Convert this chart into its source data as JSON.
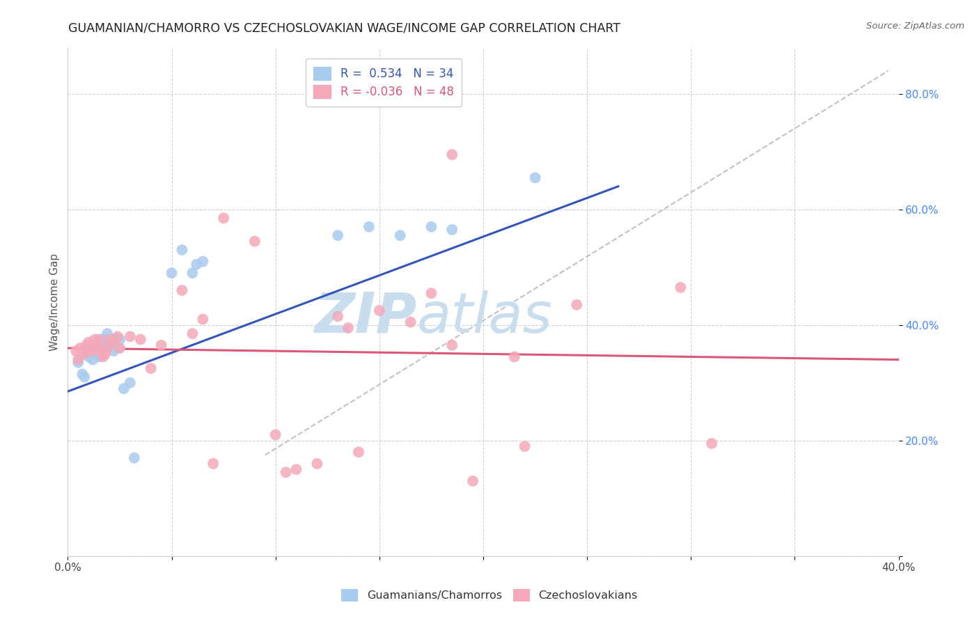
{
  "title": "GUAMANIAN/CHAMORRO VS CZECHOSLOVAKIAN WAGE/INCOME GAP CORRELATION CHART",
  "source": "Source: ZipAtlas.com",
  "ylabel": "Wage/Income Gap",
  "xlim": [
    0.0,
    0.4
  ],
  "ylim": [
    0.0,
    0.88
  ],
  "xticks": [
    0.0,
    0.05,
    0.1,
    0.15,
    0.2,
    0.25,
    0.3,
    0.35,
    0.4
  ],
  "xticklabels": [
    "0.0%",
    "",
    "",
    "",
    "",
    "",
    "",
    "",
    "40.0%"
  ],
  "yticks": [
    0.0,
    0.2,
    0.4,
    0.6,
    0.8
  ],
  "yticklabels": [
    "",
    "20.0%",
    "40.0%",
    "60.0%",
    "80.0%"
  ],
  "color_blue": "#A8CCEE",
  "color_pink": "#F4A8B8",
  "line_blue": "#3355BB",
  "line_pink": "#DD5577",
  "line_diag": "#BBBBBB",
  "background": "#FFFFFF",
  "grid_color": "#CCCCCC",
  "blue_x": [
    0.005,
    0.007,
    0.008,
    0.01,
    0.01,
    0.012,
    0.013,
    0.014,
    0.015,
    0.016,
    0.017,
    0.018,
    0.018,
    0.019,
    0.02,
    0.021,
    0.022,
    0.023,
    0.024,
    0.025,
    0.027,
    0.03,
    0.032,
    0.05,
    0.055,
    0.06,
    0.062,
    0.065,
    0.13,
    0.145,
    0.16,
    0.175,
    0.185,
    0.225
  ],
  "blue_y": [
    0.335,
    0.315,
    0.31,
    0.345,
    0.36,
    0.34,
    0.35,
    0.36,
    0.345,
    0.375,
    0.365,
    0.36,
    0.375,
    0.385,
    0.365,
    0.375,
    0.355,
    0.375,
    0.36,
    0.375,
    0.29,
    0.3,
    0.17,
    0.49,
    0.53,
    0.49,
    0.505,
    0.51,
    0.555,
    0.57,
    0.555,
    0.57,
    0.565,
    0.655
  ],
  "pink_x": [
    0.004,
    0.005,
    0.006,
    0.007,
    0.008,
    0.009,
    0.01,
    0.011,
    0.012,
    0.013,
    0.014,
    0.015,
    0.016,
    0.017,
    0.018,
    0.019,
    0.02,
    0.022,
    0.024,
    0.025,
    0.03,
    0.035,
    0.04,
    0.045,
    0.055,
    0.06,
    0.065,
    0.07,
    0.075,
    0.09,
    0.1,
    0.105,
    0.11,
    0.12,
    0.13,
    0.135,
    0.14,
    0.15,
    0.165,
    0.175,
    0.185,
    0.185,
    0.195,
    0.215,
    0.22,
    0.245,
    0.295,
    0.31
  ],
  "pink_y": [
    0.355,
    0.34,
    0.36,
    0.355,
    0.35,
    0.365,
    0.37,
    0.36,
    0.355,
    0.375,
    0.365,
    0.375,
    0.355,
    0.345,
    0.35,
    0.36,
    0.375,
    0.37,
    0.38,
    0.36,
    0.38,
    0.375,
    0.325,
    0.365,
    0.46,
    0.385,
    0.41,
    0.16,
    0.585,
    0.545,
    0.21,
    0.145,
    0.15,
    0.16,
    0.415,
    0.395,
    0.18,
    0.425,
    0.405,
    0.455,
    0.365,
    0.695,
    0.13,
    0.345,
    0.19,
    0.435,
    0.465,
    0.195
  ],
  "blue_line_x": [
    0.0,
    0.265
  ],
  "blue_line_y": [
    0.285,
    0.64
  ],
  "pink_line_x": [
    0.0,
    0.4
  ],
  "pink_line_y": [
    0.36,
    0.34
  ],
  "diag_line_x": [
    0.095,
    0.395
  ],
  "diag_line_y": [
    0.175,
    0.84
  ],
  "watermark_line1": "ZIP",
  "watermark_line2": "atlas",
  "watermark_color": "#DDEEFF"
}
